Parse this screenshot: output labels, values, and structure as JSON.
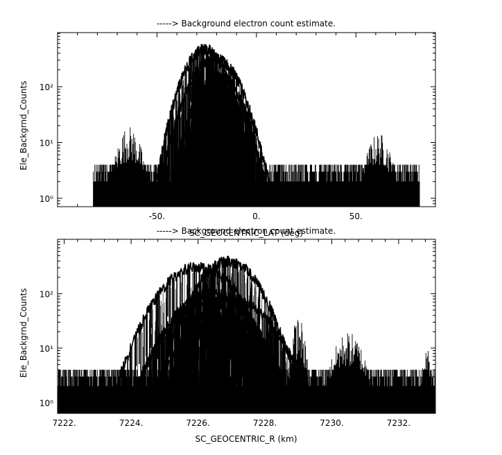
{
  "chart_data": [
    {
      "type": "line",
      "title": "-----> Background electron count estimate.",
      "xlabel": "SC_GEOCENTRIC_LAT (deg)",
      "ylabel": "Ele_Backgrnd_Counts",
      "xlim": [
        -100,
        90
      ],
      "ylim_log10": [
        -0.15,
        2.97
      ],
      "y_scale": "log",
      "x_ticks": [
        {
          "v": -50,
          "label": "-50."
        },
        {
          "v": 0,
          "label": "0."
        },
        {
          "v": 50,
          "label": "50."
        }
      ],
      "y_ticks": [
        {
          "v": 1,
          "label": "10⁰"
        },
        {
          "v": 10,
          "label": "10¹"
        },
        {
          "v": 100,
          "label": "10²"
        }
      ],
      "noise_floor": {
        "x_range": [
          -82,
          82
        ],
        "y_range": [
          1,
          4
        ]
      },
      "noise_bumps": [
        {
          "x": [
            -76,
            -52
          ],
          "peak": 20
        },
        {
          "x": [
            50,
            73
          ],
          "peak": 15
        }
      ],
      "series": [
        {
          "center": -26,
          "half_width": 26,
          "peak": 460
        },
        {
          "center": -21,
          "half_width": 29,
          "peak": 320
        },
        {
          "center": -19,
          "half_width": 25,
          "peak": 150
        },
        {
          "center": -22,
          "half_width": 22,
          "peak": 115
        },
        {
          "center": -18,
          "half_width": 24,
          "peak": 80
        },
        {
          "center": -21,
          "half_width": 19,
          "peak": 55
        },
        {
          "center": -22,
          "half_width": 14,
          "peak": 35
        }
      ]
    },
    {
      "type": "line",
      "title": "-----> Background electron count estimate.",
      "xlabel": "SC_GEOCENTRIC_R (km)",
      "ylabel": "Ele_Backgrnd_Counts",
      "xlim": [
        7221.8,
        7233.1
      ],
      "ylim_log10": [
        -0.2,
        3.0
      ],
      "y_scale": "log",
      "x_ticks": [
        {
          "v": 7222,
          "label": "7222."
        },
        {
          "v": 7224,
          "label": "7224."
        },
        {
          "v": 7226,
          "label": "7226."
        },
        {
          "v": 7228,
          "label": "7228."
        },
        {
          "v": 7230,
          "label": "7230."
        },
        {
          "v": 7232,
          "label": "7232."
        }
      ],
      "y_ticks": [
        {
          "v": 1,
          "label": "10⁰"
        },
        {
          "v": 10,
          "label": "10¹"
        },
        {
          "v": 100,
          "label": "10²"
        }
      ],
      "noise_floor": {
        "x_range": [
          7221.8,
          7233.1
        ],
        "y_range": [
          1,
          4
        ]
      },
      "noise_bumps": [
        {
          "x": [
            7228.6,
            7229.4
          ],
          "peak": 40
        },
        {
          "x": [
            7229.6,
            7231.4
          ],
          "peak": 20
        },
        {
          "x": [
            7232.6,
            7233.1
          ],
          "peak": 10
        }
      ],
      "series": [
        {
          "center": 7226.9,
          "half_width": 2.2,
          "peak": 390
        },
        {
          "center": 7226.0,
          "half_width": 2.6,
          "peak": 310
        },
        {
          "center": 7226.4,
          "half_width": 2.4,
          "peak": 100
        },
        {
          "center": 7227.0,
          "half_width": 2.4,
          "peak": 80
        },
        {
          "center": 7226.2,
          "half_width": 2.2,
          "peak": 65
        },
        {
          "center": 7226.9,
          "half_width": 1.9,
          "peak": 35
        },
        {
          "center": 7226.5,
          "half_width": 1.6,
          "peak": 25
        }
      ]
    }
  ]
}
